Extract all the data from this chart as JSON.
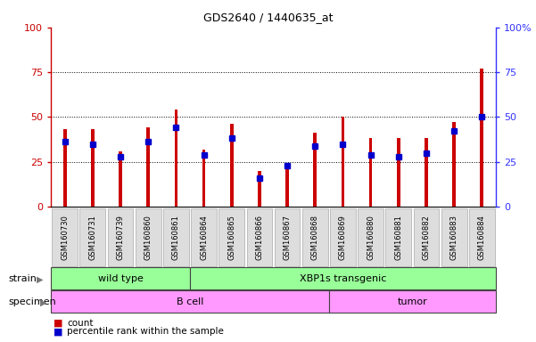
{
  "title": "GDS2640 / 1440635_at",
  "samples": [
    "GSM160730",
    "GSM160731",
    "GSM160739",
    "GSM160860",
    "GSM160861",
    "GSM160864",
    "GSM160865",
    "GSM160866",
    "GSM160867",
    "GSM160868",
    "GSM160869",
    "GSM160880",
    "GSM160881",
    "GSM160882",
    "GSM160883",
    "GSM160884"
  ],
  "count_values": [
    43,
    43,
    31,
    44,
    54,
    32,
    46,
    20,
    22,
    41,
    50,
    38,
    38,
    38,
    47,
    77
  ],
  "percentile_values": [
    36,
    35,
    28,
    36,
    44,
    29,
    38,
    16,
    23,
    34,
    35,
    29,
    28,
    30,
    42,
    50
  ],
  "strain_groups": [
    {
      "label": "wild type",
      "start": 0,
      "end": 4
    },
    {
      "label": "XBP1s transgenic",
      "start": 5,
      "end": 15
    }
  ],
  "specimen_groups": [
    {
      "label": "B cell",
      "start": 0,
      "end": 9
    },
    {
      "label": "tumor",
      "start": 10,
      "end": 15
    }
  ],
  "bar_color": "#cc0000",
  "percentile_color": "#0000cc",
  "strain_color": "#99ff99",
  "specimen_color": "#ff99ff",
  "axis_bg_color": "#ffffff",
  "xtick_bg_color": "#dddddd",
  "ylim": [
    0,
    100
  ],
  "yticks": [
    0,
    25,
    50,
    75,
    100
  ],
  "right_ytick_labels": [
    "0",
    "25",
    "50",
    "75",
    "100%"
  ],
  "legend_count_label": "count",
  "legend_percentile_label": "percentile rank within the sample",
  "left_yaxis_color": "#cc0000",
  "right_yaxis_color": "#3333ff",
  "bar_width": 0.12,
  "pct_bar_width": 0.25
}
